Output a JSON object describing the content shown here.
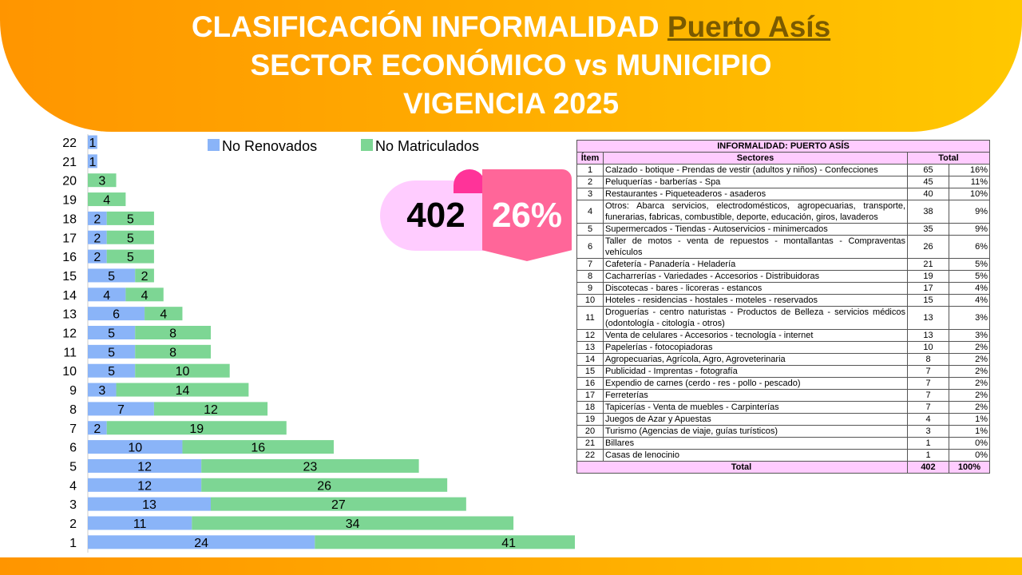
{
  "header": {
    "title_line1": "CLASIFICACIÓN INFORMALIDAD ",
    "title_place": "Puerto Asís",
    "title_line2": "SECTOR ECONÓMICO vs MUNICIPIO",
    "title_line3": "VIGENCIA 2025"
  },
  "badge": {
    "count": "402",
    "percent": "26%"
  },
  "colors": {
    "no_renovados": "#8ab4f8",
    "no_matriculados": "#7dd694",
    "header": "#ffa500",
    "table_header": "#ffccff",
    "flag": "#ff6699"
  },
  "chart_data": {
    "type": "bar",
    "orientation": "horizontal",
    "stacked": true,
    "legend": "top",
    "categories": [
      "1",
      "2",
      "3",
      "4",
      "5",
      "6",
      "7",
      "8",
      "9",
      "10",
      "11",
      "12",
      "13",
      "14",
      "15",
      "16",
      "17",
      "18",
      "19",
      "20",
      "21",
      "22"
    ],
    "series": [
      {
        "name": "No Renovados",
        "values": [
          24,
          11,
          13,
          12,
          12,
          10,
          2,
          7,
          3,
          5,
          5,
          5,
          6,
          4,
          5,
          2,
          2,
          2,
          0,
          0,
          1,
          1
        ]
      },
      {
        "name": "No Matriculados",
        "values": [
          41,
          34,
          27,
          26,
          23,
          16,
          19,
          12,
          14,
          10,
          8,
          8,
          4,
          4,
          2,
          5,
          5,
          5,
          4,
          3,
          0,
          0
        ]
      }
    ]
  },
  "table": {
    "title": "INFORMALIDAD: PUERTO ASÍS",
    "headers": {
      "item": "Ítem",
      "sector": "Sectores",
      "total": "Total"
    },
    "rows": [
      [
        "1",
        "Calzado - botique - Prendas de vestir (adultos y niños) - Confecciones",
        "65",
        "16%"
      ],
      [
        "2",
        "Peluquerías - barberías - Spa",
        "45",
        "11%"
      ],
      [
        "3",
        "Restaurantes - Piqueteaderos - asaderos",
        "40",
        "10%"
      ],
      [
        "4",
        "Otros: Abarca servicios, electrodomésticos, agropecuarias, transporte, funerarias, fabricas, combustible, deporte,  educación, giros, lavaderos",
        "38",
        "9%"
      ],
      [
        "5",
        "Supermercados - Tiendas - Autoservicios - minimercados",
        "35",
        "9%"
      ],
      [
        "6",
        "Taller de motos - venta de repuestos - montallantas - Compraventas vehículos",
        "26",
        "6%"
      ],
      [
        "7",
        "Cafetería - Panadería - Heladería",
        "21",
        "5%"
      ],
      [
        "8",
        "Cacharrerías - Variedades - Accesorios - Distribuidoras",
        "19",
        "5%"
      ],
      [
        "9",
        "Discotecas - bares - licoreras - estancos",
        "17",
        "4%"
      ],
      [
        "10",
        "Hoteles - residencias - hostales - moteles - reservados",
        "15",
        "4%"
      ],
      [
        "11",
        "Droguerías - centro naturistas - Productos de Belleza - servicios médicos (odontología - citología - otros)",
        "13",
        "3%"
      ],
      [
        "12",
        "Venta de celulares - Accesorios - tecnología - internet",
        "13",
        "3%"
      ],
      [
        "13",
        "Papelerías - fotocopiadoras",
        "10",
        "2%"
      ],
      [
        "14",
        "Agropecuarias, Agrícola, Agro, Agroveterinaria",
        "8",
        "2%"
      ],
      [
        "15",
        "Publicidad - Imprentas - fotografía",
        "7",
        "2%"
      ],
      [
        "16",
        "Expendio de carnes (cerdo - res - pollo - pescado)",
        "7",
        "2%"
      ],
      [
        "17",
        "Ferreterías",
        "7",
        "2%"
      ],
      [
        "18",
        "Tapicerías - Venta de muebles - Carpinterías",
        "7",
        "2%"
      ],
      [
        "19",
        "Juegos de Azar y Apuestas",
        "4",
        "1%"
      ],
      [
        "20",
        "Turismo (Agencias de viaje, guías turísticos)",
        "3",
        "1%"
      ],
      [
        "21",
        "Billares",
        "1",
        "0%"
      ],
      [
        "22",
        "Casas de lenocinio",
        "1",
        "0%"
      ]
    ],
    "total": {
      "label": "Total",
      "count": "402",
      "percent": "100%"
    }
  }
}
